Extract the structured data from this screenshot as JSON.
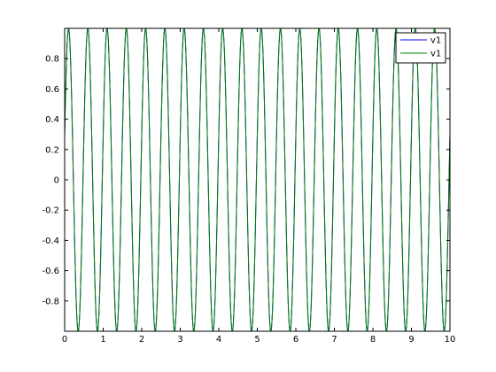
{
  "chart_data": {
    "type": "line",
    "xlim": [
      0,
      10
    ],
    "ylim": [
      -1,
      1
    ],
    "x_ticks": [
      0,
      1,
      2,
      3,
      4,
      5,
      6,
      7,
      8,
      9,
      10
    ],
    "x_tick_labels": [
      "0",
      "1",
      "2",
      "3",
      "4",
      "5",
      "6",
      "7",
      "8",
      "9",
      "10"
    ],
    "y_ticks": [
      -0.8,
      -0.6,
      -0.4,
      -0.2,
      0,
      0.2,
      0.4,
      0.6,
      0.8
    ],
    "y_tick_labels": [
      "-0.8",
      "-0.6",
      "-0.4",
      "-0.2",
      "0",
      "0.2",
      "0.4",
      "0.6",
      "0.8"
    ],
    "grid": false,
    "legend_location": "top-right",
    "series": [
      {
        "name": "v1",
        "color": "#0000ff",
        "function": "sin",
        "frequency_hz": 2,
        "phase_rad": 0.3,
        "amplitude": 1,
        "x_start": 0,
        "x_end": 10
      },
      {
        "name": "v1",
        "color": "#008000",
        "function": "sin",
        "frequency_hz": 2,
        "phase_rad": 0.3,
        "amplitude": 1,
        "x_start": 0,
        "x_end": 10
      }
    ]
  }
}
